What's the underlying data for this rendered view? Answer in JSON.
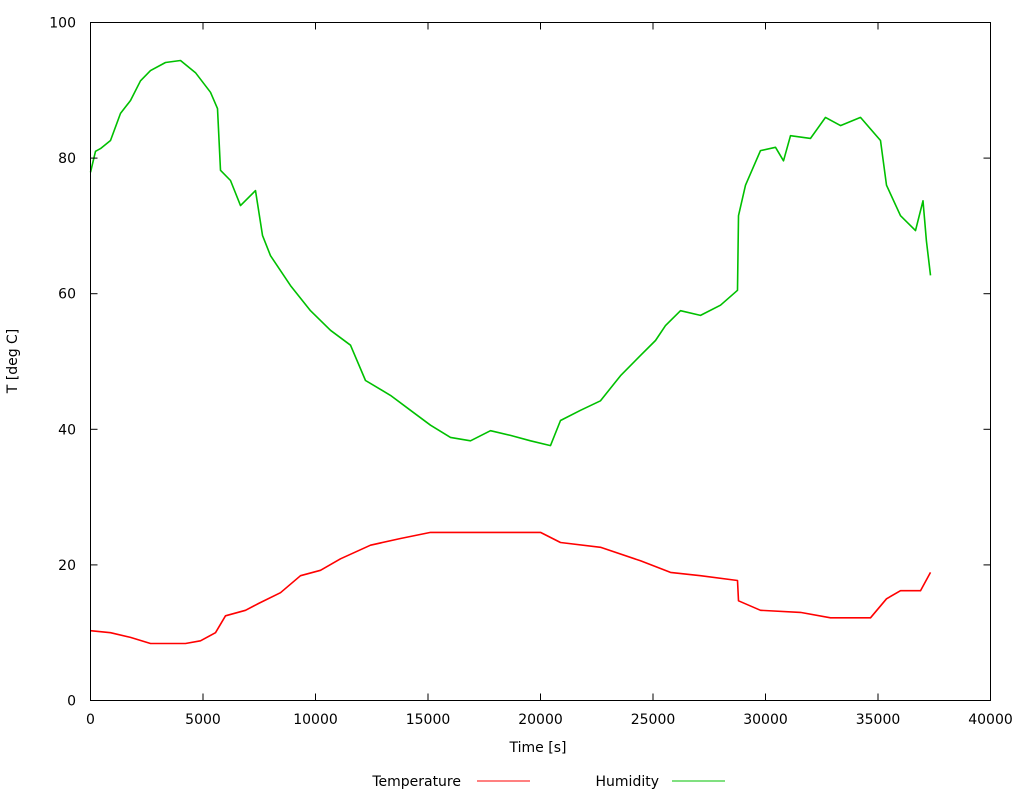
{
  "chart_data": {
    "type": "line",
    "title": "",
    "xlabel": "Time [s]",
    "ylabel": "T [deg C]",
    "xlim": [
      0,
      40000
    ],
    "ylim": [
      0,
      100
    ],
    "xticks": [
      0,
      5000,
      10000,
      15000,
      20000,
      25000,
      30000,
      35000,
      40000
    ],
    "yticks": [
      0,
      20,
      40,
      60,
      80,
      100
    ],
    "grid": false,
    "legend": "bottom",
    "series": [
      {
        "name": "Temperature",
        "color": "#ff0000",
        "points": [
          [
            0,
            10.3
          ],
          [
            889,
            10
          ],
          [
            1778,
            9.3
          ],
          [
            2667,
            8.4
          ],
          [
            4222,
            8.4
          ],
          [
            4889,
            8.8
          ],
          [
            5556,
            10
          ],
          [
            6000,
            12.5
          ],
          [
            6889,
            13.3
          ],
          [
            7467,
            14.3
          ],
          [
            8444,
            15.9
          ],
          [
            9333,
            18.4
          ],
          [
            10222,
            19.2
          ],
          [
            11111,
            20.9
          ],
          [
            12444,
            22.9
          ],
          [
            13778,
            23.9
          ],
          [
            15111,
            24.8
          ],
          [
            16444,
            24.8
          ],
          [
            18222,
            24.8
          ],
          [
            20000,
            24.8
          ],
          [
            20889,
            23.3
          ],
          [
            22667,
            22.6
          ],
          [
            24444,
            20.6
          ],
          [
            25778,
            18.9
          ],
          [
            27111,
            18.4
          ],
          [
            28756,
            17.7
          ],
          [
            28800,
            14.7
          ],
          [
            29778,
            13.3
          ],
          [
            31556,
            13
          ],
          [
            32889,
            12.2
          ],
          [
            34667,
            12.2
          ],
          [
            35378,
            15
          ],
          [
            36000,
            16.2
          ],
          [
            36889,
            16.2
          ],
          [
            37333,
            18.9
          ]
        ]
      },
      {
        "name": "Humidity",
        "color": "#00c000",
        "points": [
          [
            0,
            77.9
          ],
          [
            222,
            81
          ],
          [
            444,
            81.4
          ],
          [
            889,
            82.6
          ],
          [
            1333,
            86.6
          ],
          [
            1778,
            88.5
          ],
          [
            2222,
            91.4
          ],
          [
            2667,
            92.9
          ],
          [
            3333,
            94.1
          ],
          [
            4000,
            94.4
          ],
          [
            4667,
            92.6
          ],
          [
            5333,
            89.7
          ],
          [
            5644,
            87.3
          ],
          [
            5778,
            78.2
          ],
          [
            6222,
            76.7
          ],
          [
            6667,
            73
          ],
          [
            7333,
            75.2
          ],
          [
            7644,
            68.6
          ],
          [
            8000,
            65.6
          ],
          [
            8889,
            61.2
          ],
          [
            9778,
            57.5
          ],
          [
            10667,
            54.6
          ],
          [
            11556,
            52.4
          ],
          [
            12222,
            47.2
          ],
          [
            13333,
            45
          ],
          [
            14222,
            42.8
          ],
          [
            15111,
            40.6
          ],
          [
            16000,
            38.8
          ],
          [
            16889,
            38.3
          ],
          [
            17778,
            39.8
          ],
          [
            18667,
            39.1
          ],
          [
            19556,
            38.3
          ],
          [
            20444,
            37.6
          ],
          [
            20889,
            41.3
          ],
          [
            21778,
            42.8
          ],
          [
            22667,
            44.2
          ],
          [
            23556,
            47.9
          ],
          [
            24444,
            50.9
          ],
          [
            25111,
            53.1
          ],
          [
            25556,
            55.3
          ],
          [
            26222,
            57.5
          ],
          [
            27111,
            56.8
          ],
          [
            28000,
            58.3
          ],
          [
            28756,
            60.5
          ],
          [
            28800,
            71.5
          ],
          [
            29111,
            76
          ],
          [
            29778,
            81.1
          ],
          [
            30444,
            81.6
          ],
          [
            30800,
            79.6
          ],
          [
            31111,
            83.3
          ],
          [
            32000,
            82.9
          ],
          [
            32667,
            86
          ],
          [
            33333,
            84.8
          ],
          [
            34222,
            86
          ],
          [
            35111,
            82.6
          ],
          [
            35378,
            76
          ],
          [
            36000,
            71.5
          ],
          [
            36667,
            69.3
          ],
          [
            37000,
            73.7
          ],
          [
            37150,
            67.8
          ],
          [
            37333,
            62.7
          ]
        ]
      }
    ]
  }
}
